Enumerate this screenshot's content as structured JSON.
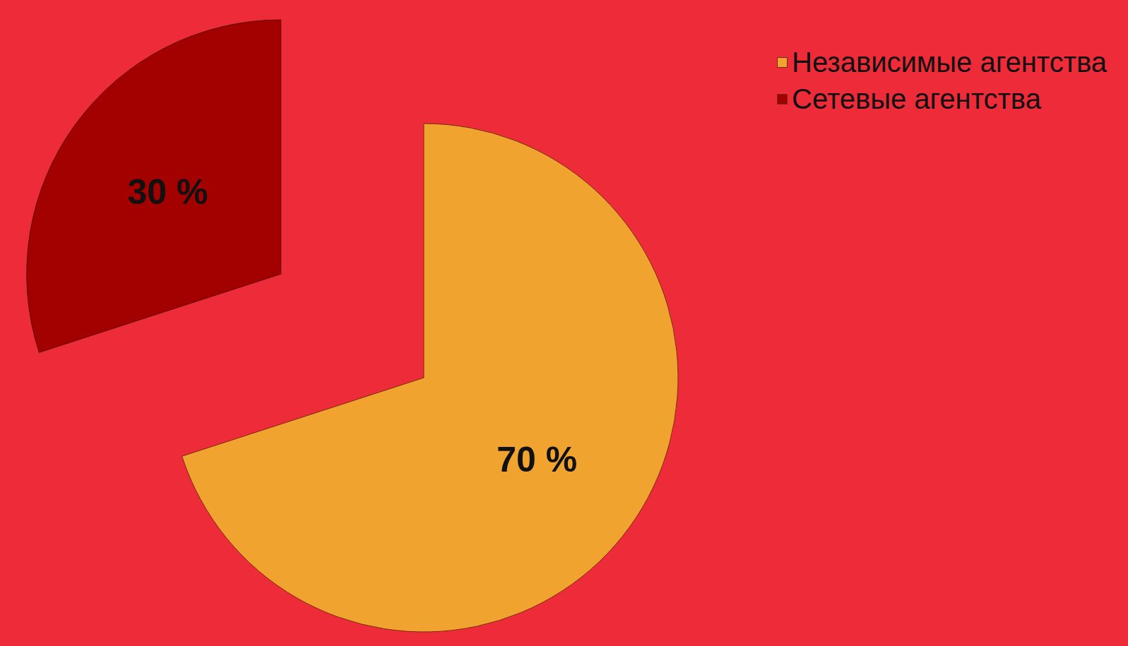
{
  "chart_data": {
    "type": "pie",
    "categories": [
      "Независимые агентства",
      "Сетевые агентства"
    ],
    "values": [
      70,
      30
    ],
    "value_labels": [
      "70 %",
      "30 %"
    ],
    "colors": [
      "#f0a32e",
      "#a30000"
    ],
    "data_labels": true,
    "legend": "top-right"
  }
}
